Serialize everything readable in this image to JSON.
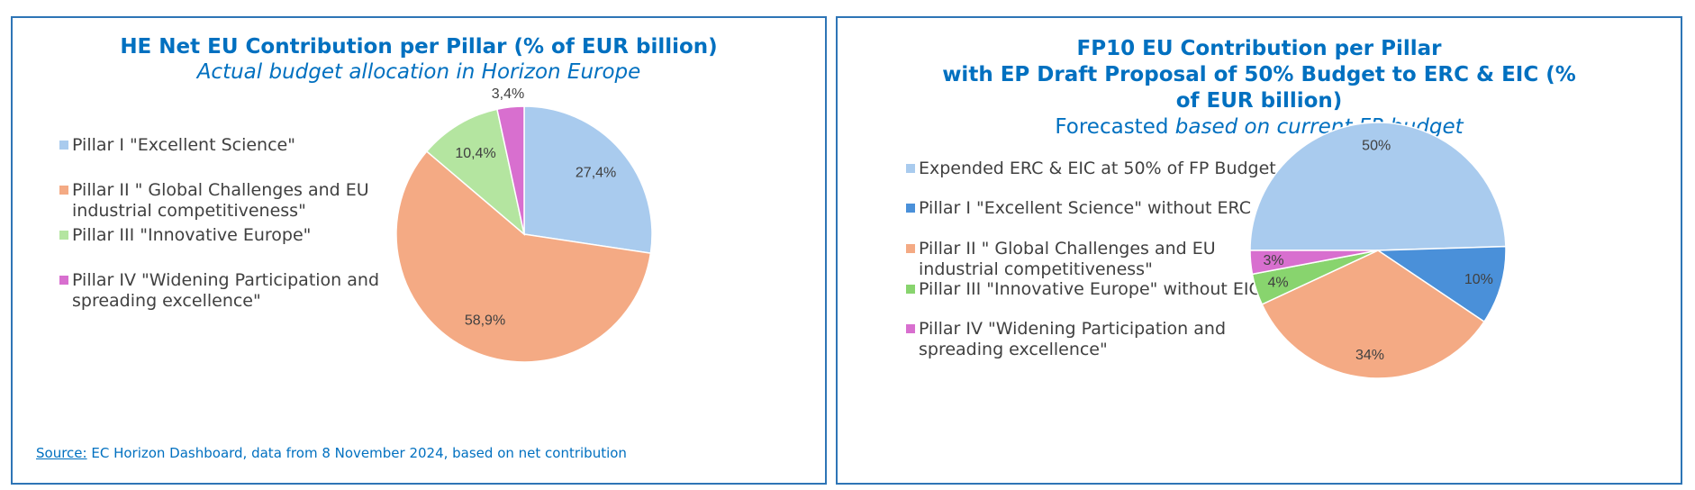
{
  "left_panel": {
    "title": "HE Net EU Contribution per Pillar (% of EUR billion)",
    "subtitle": "Actual budget allocation in Horizon Europe",
    "source_label": "Source:",
    "source_text": " EC Horizon Dashboard, data from 8 November 2024, based on net contribution"
  },
  "right_panel": {
    "title_line1": "FP10 EU Contribution per Pillar",
    "title_line2": "with EP Draft Proposal of 50% Budget to ERC & EIC (%",
    "title_line3": "of EUR billion)",
    "subtitle_plain": "Forecasted ",
    "subtitle_italic": "based on current FP budget"
  },
  "chart_data": [
    {
      "type": "pie",
      "title": "HE Net EU Contribution per Pillar (% of EUR billion)",
      "subtitle": "Actual budget allocation in Horizon Europe",
      "legend_position": "left",
      "slices": [
        {
          "name": "Pillar I \"Excellent Science\"",
          "value": 27.4,
          "label": "27,4%",
          "color": "#a9cbee"
        },
        {
          "name": "Pillar II \" Global Challenges and EU industrial competitiveness\"",
          "value": 58.9,
          "label": "58,9%",
          "color": "#f4aa84"
        },
        {
          "name": "Pillar III \"Innovative Europe\"",
          "value": 10.4,
          "label": "10,4%",
          "color": "#b4e5a0"
        },
        {
          "name": "Pillar IV \"Widening Participation and spreading excellence\"",
          "value": 3.4,
          "label": "3,4%",
          "color": "#d86fcf"
        }
      ],
      "legend": [
        {
          "line1": "Pillar I \"Excellent Science\"",
          "line2": ""
        },
        {
          "line1": "Pillar II \" Global Challenges and EU",
          "line2": "industrial competitiveness\""
        },
        {
          "line1": "Pillar III \"Innovative Europe\"",
          "line2": ""
        },
        {
          "line1": "Pillar IV \"Widening Participation and",
          "line2": "spreading excellence\""
        }
      ]
    },
    {
      "type": "pie",
      "title": "FP10 EU Contribution per Pillar with EP Draft Proposal of 50% Budget to ERC & EIC (% of EUR billion)",
      "subtitle": "Forecasted based on current FP budget",
      "legend_position": "left",
      "slices": [
        {
          "name": "Expended ERC & EIC at 50% of FP Budget",
          "value": 50,
          "label": "50%",
          "color": "#a9cbee"
        },
        {
          "name": "Pillar I \"Excellent Science\" without ERC",
          "value": 10,
          "label": "10%",
          "color": "#4a90d9"
        },
        {
          "name": "Pillar II \" Global Challenges and EU industrial competitiveness\"",
          "value": 34,
          "label": "34%",
          "color": "#f4aa84"
        },
        {
          "name": "Pillar III \"Innovative Europe\" without EIC",
          "value": 4,
          "label": "4%",
          "color": "#88d46e"
        },
        {
          "name": "Pillar IV \"Widening Participation and spreading excellence\"",
          "value": 3,
          "label": "3%",
          "color": "#d86fcf"
        }
      ],
      "legend": [
        {
          "line1": "Expended ERC & EIC at 50% of FP Budget",
          "line2": ""
        },
        {
          "line1": "Pillar I \"Excellent Science\" without ERC",
          "line2": ""
        },
        {
          "line1": "Pillar II \" Global Challenges and EU",
          "line2": "industrial competitiveness\""
        },
        {
          "line1": "Pillar III \"Innovative Europe\" without EIC",
          "line2": ""
        },
        {
          "line1": "Pillar IV \"Widening Participation and",
          "line2": "spreading excellence\""
        }
      ]
    }
  ]
}
